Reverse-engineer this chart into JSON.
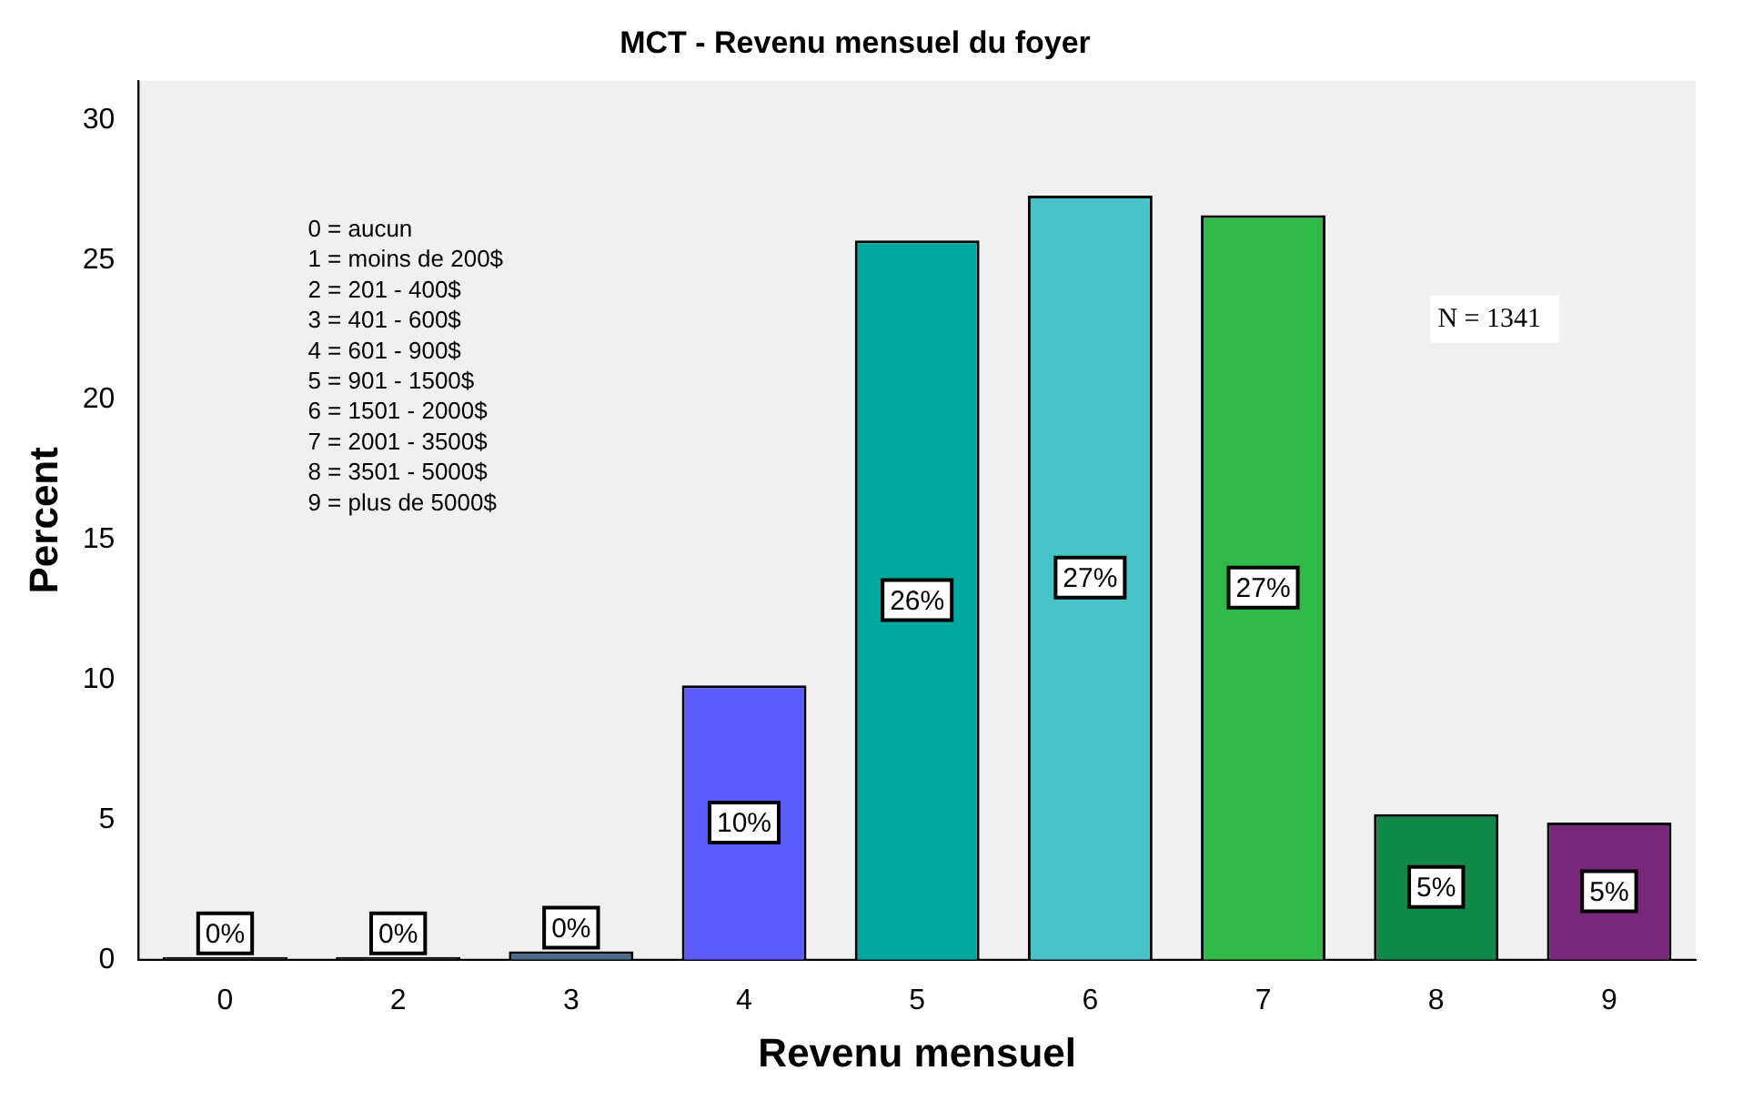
{
  "chart_data": {
    "type": "bar",
    "title": "MCT - Revenu mensuel du foyer",
    "xlabel": "Revenu mensuel",
    "ylabel": "Percent",
    "categories": [
      "0",
      "2",
      "3",
      "4",
      "5",
      "6",
      "7",
      "8",
      "9"
    ],
    "values": [
      0.1,
      0.1,
      0.3,
      9.8,
      25.7,
      27.3,
      26.6,
      5.2,
      4.9
    ],
    "value_labels": [
      "0%",
      "0%",
      "0%",
      "10%",
      "26%",
      "27%",
      "27%",
      "5%",
      "5%"
    ],
    "colors": [
      "#1a1a1a",
      "#1a1a1a",
      "#4a6a8a",
      "#5c5cff",
      "#00a8a0",
      "#48c4c8",
      "#30b848",
      "#108848",
      "#782878"
    ],
    "ylim": [
      0,
      31.4
    ],
    "yticks": [
      0,
      5,
      10,
      15,
      20,
      25,
      30
    ],
    "grid": false,
    "legend": false,
    "annotations": [
      "0 = aucun",
      "1 = moins de 200$",
      "2 = 201 - 400$",
      "3 = 401 - 600$",
      "4 = 601 - 900$",
      "5 = 901 - 1500$",
      "6 = 1501 - 2000$",
      "7 = 2001 - 3500$",
      "8 = 3501 - 5000$",
      "9 = plus de 5000$",
      "N = 1341"
    ]
  }
}
